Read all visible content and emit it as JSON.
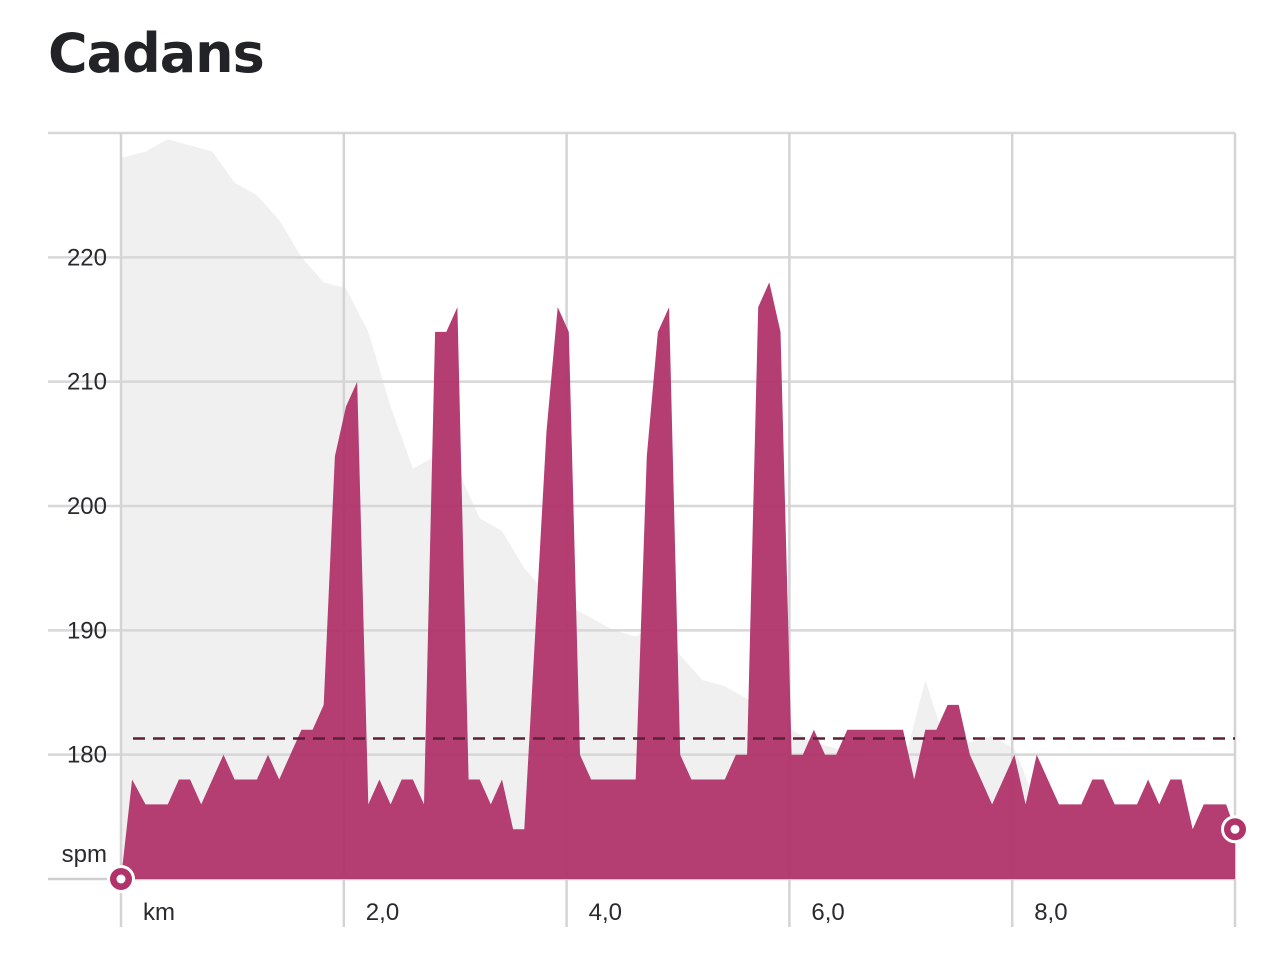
{
  "title": "Cadans",
  "chart_data": {
    "type": "area",
    "title": "Cadans",
    "xlabel": "km",
    "ylabel": "spm",
    "xlim": [
      0,
      10
    ],
    "ylim": [
      170,
      230
    ],
    "x_ticks": [
      {
        "value": 2,
        "label": "2,0"
      },
      {
        "value": 4,
        "label": "4,0"
      },
      {
        "value": 6,
        "label": "6,0"
      },
      {
        "value": 8,
        "label": "8,0"
      }
    ],
    "y_ticks": [
      180,
      190,
      200,
      210,
      220
    ],
    "average_line": 181.3,
    "series": [
      {
        "color": "#b0336a",
        "x": [
          0,
          0.1,
          0.22,
          0.42,
          0.52,
          0.62,
          0.72,
          0.92,
          1.02,
          1.22,
          1.32,
          1.42,
          1.52,
          1.62,
          1.72,
          1.82,
          1.92,
          2.02,
          2.12,
          2.22,
          2.32,
          2.42,
          2.52,
          2.62,
          2.72,
          2.82,
          2.92,
          3.02,
          3.12,
          3.22,
          3.32,
          3.42,
          3.52,
          3.62,
          3.72,
          3.82,
          3.92,
          4.02,
          4.12,
          4.22,
          4.32,
          4.42,
          4.52,
          4.62,
          4.72,
          4.82,
          4.92,
          5.02,
          5.12,
          5.32,
          5.42,
          5.52,
          5.62,
          5.72,
          5.82,
          5.92,
          6.02,
          6.12,
          6.22,
          6.32,
          6.42,
          6.52,
          6.62,
          6.72,
          6.82,
          6.92,
          7.02,
          7.12,
          7.22,
          7.32,
          7.42,
          7.52,
          7.62,
          7.72,
          7.82,
          7.92,
          8.02,
          8.12,
          8.22,
          8.32,
          8.42,
          8.52,
          8.62,
          8.72,
          8.82,
          8.92,
          9.02,
          9.12,
          9.22,
          9.32,
          9.42,
          9.52,
          9.62,
          9.72,
          9.82,
          9.92,
          10.0
        ],
        "values": [
          170,
          178,
          176,
          176,
          178,
          178,
          176,
          180,
          178,
          178,
          180,
          178,
          180,
          182,
          182,
          184,
          204,
          208,
          210,
          176,
          178,
          176,
          178,
          178,
          176,
          214,
          214,
          216,
          178,
          178,
          176,
          178,
          174,
          174,
          190,
          206,
          216,
          214,
          180,
          178,
          178,
          178,
          178,
          178,
          204,
          214,
          216,
          180,
          178,
          178,
          178,
          180,
          180,
          216,
          218,
          214,
          180,
          180,
          182,
          180,
          180,
          182,
          182,
          182,
          182,
          182,
          182,
          178,
          182,
          182,
          184,
          184,
          180,
          178,
          176,
          178,
          180,
          176,
          180,
          178,
          176,
          176,
          176,
          178,
          178,
          176,
          176,
          176,
          178,
          176,
          178,
          178,
          174,
          176,
          176,
          176,
          174
        ]
      }
    ],
    "background_series": {
      "color": "#f0f0f0",
      "x": [
        0,
        0.22,
        0.42,
        0.62,
        0.82,
        1.02,
        1.22,
        1.42,
        1.62,
        1.82,
        2.02,
        2.22,
        2.42,
        2.62,
        2.82,
        3.02,
        3.22,
        3.42,
        3.62,
        3.82,
        4.02,
        4.22,
        4.42,
        4.62,
        4.82,
        5.02,
        5.22,
        5.42,
        5.62,
        5.82,
        6.02,
        6.22,
        6.42,
        6.62,
        6.82,
        7.02,
        7.22,
        7.42,
        7.62,
        7.82,
        8.02,
        8.22,
        8.42,
        8.62,
        8.82,
        9.02,
        9.22,
        9.42,
        9.62,
        9.82,
        10.0
      ],
      "values": [
        228,
        228.5,
        229.5,
        229,
        228.5,
        226,
        225,
        223,
        220,
        218,
        217.5,
        214,
        208,
        203,
        204,
        203,
        199,
        198,
        195,
        193,
        192,
        191,
        190,
        189.5,
        190.5,
        188,
        186,
        185.5,
        184.5,
        183.5,
        182,
        181,
        180.5,
        180.5,
        179.5,
        179,
        186,
        180.5,
        181,
        181.5,
        180.5,
        176,
        175,
        174.5,
        174,
        173.5,
        172.5,
        172,
        171.5,
        171,
        170.5
      ]
    }
  }
}
